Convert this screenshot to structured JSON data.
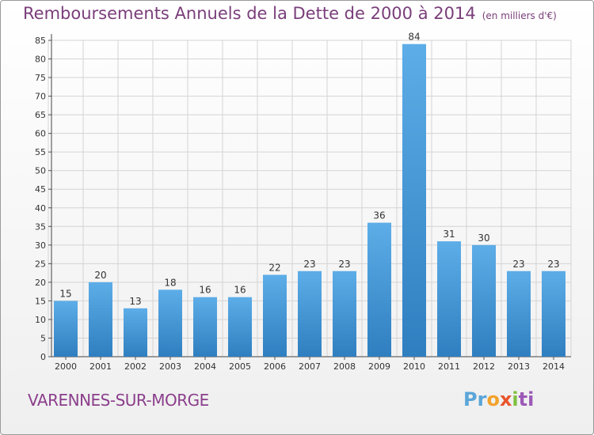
{
  "title": "Remboursements Annuels de la Dette de 2000 à 2014",
  "unit": "(en milliers d'€)",
  "commune": "VARENNES-SUR-MORGE",
  "brand": {
    "p1": "Pr",
    "p2": "o",
    "p3": "x",
    "p4": "i",
    "p5": "ti"
  },
  "colors": {
    "bar_light": "#5dade8",
    "bar_dark": "#2f7fc0",
    "title": "#7a3e7a",
    "grid": "#d4d4d4"
  },
  "chart_data": {
    "type": "bar",
    "categories": [
      "2000",
      "2001",
      "2002",
      "2003",
      "2004",
      "2005",
      "2006",
      "2007",
      "2008",
      "2009",
      "2010",
      "2011",
      "2012",
      "2013",
      "2014"
    ],
    "values": [
      15,
      20,
      13,
      18,
      16,
      16,
      22,
      23,
      23,
      36,
      84,
      31,
      30,
      23,
      23
    ],
    "data_labels": [
      "15",
      "20",
      "13",
      "18",
      "16",
      "16",
      "22",
      "23",
      "23",
      "36",
      "84",
      "31",
      "30",
      "23",
      "23"
    ],
    "yticks": [
      "0",
      "5",
      "10",
      "15",
      "20",
      "25",
      "30",
      "35",
      "40",
      "45",
      "50",
      "55",
      "60",
      "65",
      "70",
      "75",
      "80",
      "85"
    ],
    "ylim": [
      0,
      85
    ],
    "grid": true,
    "legend": "none"
  }
}
